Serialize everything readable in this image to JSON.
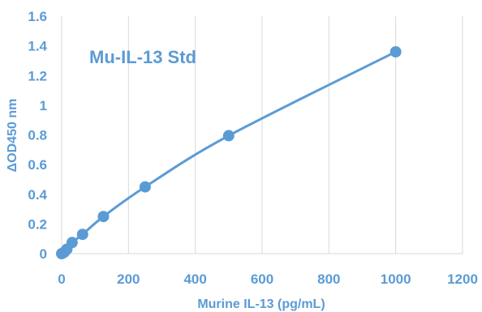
{
  "chart_data": {
    "type": "scatter",
    "title": "",
    "annotation": "Mu-IL-13 Std",
    "xlabel": "Murine IL-13 (pg/mL)",
    "ylabel": "ΔOD450 nm",
    "xlim": [
      0,
      1200
    ],
    "ylim": [
      0,
      1.6
    ],
    "x_ticks": [
      0,
      200,
      400,
      600,
      800,
      1000,
      1200
    ],
    "y_ticks": [
      0,
      0.2,
      0.4,
      0.6,
      0.8,
      1,
      1.2,
      1.4,
      1.6
    ],
    "x_tick_labels": [
      "0",
      "200",
      "400",
      "600",
      "800",
      "1000",
      "1200"
    ],
    "y_tick_labels": [
      "0",
      "0.2",
      "0.4",
      "0.6",
      "0.8",
      "1",
      "1.2",
      "1.4",
      "1.6"
    ],
    "grid": {
      "vertical": true,
      "horizontal": false
    },
    "legend": "none",
    "series": [
      {
        "x": [
          0,
          7.8,
          15.6,
          31.25,
          62.5,
          125,
          250,
          500,
          1000
        ],
        "y": [
          0.0,
          0.01,
          0.03,
          0.075,
          0.13,
          0.25,
          0.45,
          0.795,
          1.36
        ],
        "line": "smoothed"
      }
    ],
    "colors": {
      "series": "#5B9BD5",
      "text": "#5B9BD5",
      "grid": "#D9D9D9",
      "axis": "#5B9BD5"
    }
  }
}
